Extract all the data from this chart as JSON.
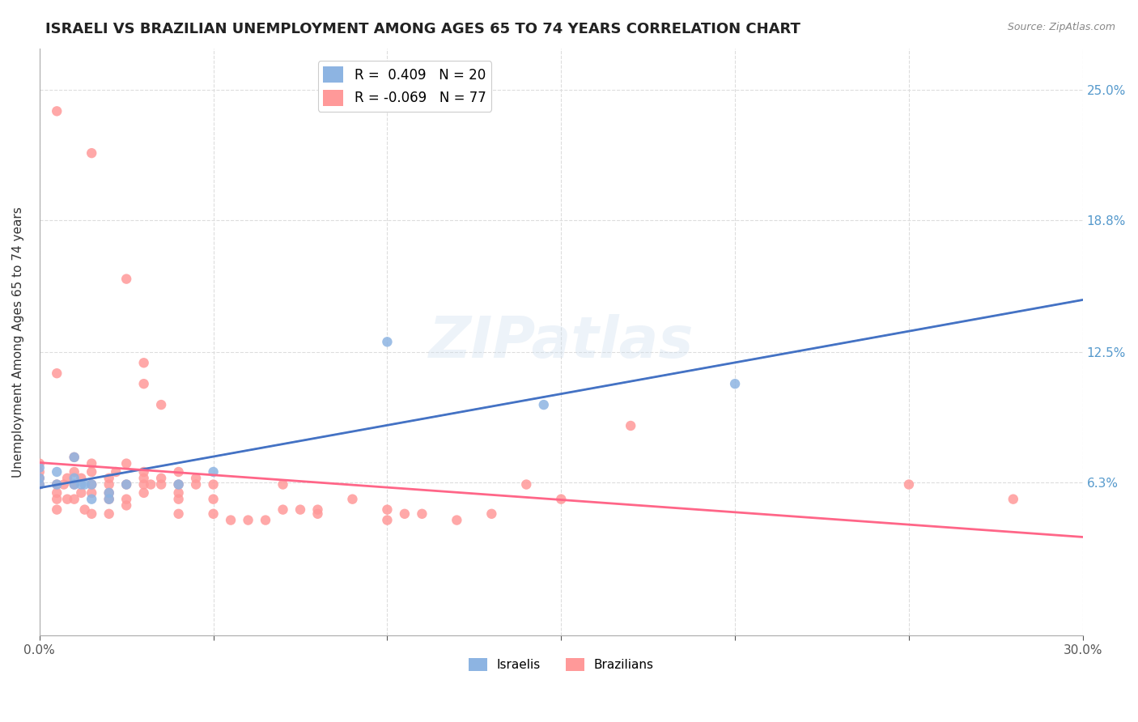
{
  "title": "ISRAELI VS BRAZILIAN UNEMPLOYMENT AMONG AGES 65 TO 74 YEARS CORRELATION CHART",
  "source": "Source: ZipAtlas.com",
  "ylabel": "Unemployment Among Ages 65 to 74 years",
  "xlim": [
    0.0,
    0.3
  ],
  "ylim": [
    -0.01,
    0.27
  ],
  "ytick_positions": [
    0.063,
    0.125,
    0.188,
    0.25
  ],
  "ytick_labels": [
    "6.3%",
    "12.5%",
    "18.8%",
    "25.0%"
  ],
  "legend_R_israeli": "0.409",
  "legend_N_israeli": "20",
  "legend_R_brazilian": "-0.069",
  "legend_N_brazilian": "77",
  "israeli_color": "#8DB4E2",
  "brazilian_color": "#FF9999",
  "trend_israeli_color": "#4472C4",
  "trend_brazilian_color": "#FF6688",
  "trend_dash_color": "#AACCEE",
  "watermark": "ZIPatlas",
  "background_color": "#FFFFFF",
  "israeli_points": [
    [
      0.0,
      0.062
    ],
    [
      0.0,
      0.065
    ],
    [
      0.0,
      0.07
    ],
    [
      0.005,
      0.062
    ],
    [
      0.005,
      0.068
    ],
    [
      0.01,
      0.062
    ],
    [
      0.01,
      0.065
    ],
    [
      0.01,
      0.075
    ],
    [
      0.012,
      0.062
    ],
    [
      0.013,
      0.062
    ],
    [
      0.015,
      0.062
    ],
    [
      0.015,
      0.055
    ],
    [
      0.02,
      0.055
    ],
    [
      0.02,
      0.058
    ],
    [
      0.025,
      0.062
    ],
    [
      0.04,
      0.062
    ],
    [
      0.05,
      0.068
    ],
    [
      0.1,
      0.13
    ],
    [
      0.145,
      0.1
    ],
    [
      0.2,
      0.11
    ]
  ],
  "brazilian_points": [
    [
      0.0,
      0.062
    ],
    [
      0.0,
      0.065
    ],
    [
      0.0,
      0.068
    ],
    [
      0.0,
      0.072
    ],
    [
      0.005,
      0.062
    ],
    [
      0.005,
      0.055
    ],
    [
      0.005,
      0.058
    ],
    [
      0.005,
      0.05
    ],
    [
      0.007,
      0.062
    ],
    [
      0.008,
      0.065
    ],
    [
      0.008,
      0.055
    ],
    [
      0.01,
      0.062
    ],
    [
      0.01,
      0.068
    ],
    [
      0.01,
      0.075
    ],
    [
      0.01,
      0.055
    ],
    [
      0.012,
      0.058
    ],
    [
      0.012,
      0.065
    ],
    [
      0.013,
      0.05
    ],
    [
      0.015,
      0.062
    ],
    [
      0.015,
      0.068
    ],
    [
      0.015,
      0.072
    ],
    [
      0.015,
      0.058
    ],
    [
      0.015,
      0.048
    ],
    [
      0.02,
      0.065
    ],
    [
      0.02,
      0.062
    ],
    [
      0.02,
      0.058
    ],
    [
      0.02,
      0.055
    ],
    [
      0.02,
      0.048
    ],
    [
      0.022,
      0.068
    ],
    [
      0.025,
      0.062
    ],
    [
      0.025,
      0.055
    ],
    [
      0.025,
      0.052
    ],
    [
      0.025,
      0.072
    ],
    [
      0.03,
      0.065
    ],
    [
      0.03,
      0.068
    ],
    [
      0.03,
      0.062
    ],
    [
      0.03,
      0.058
    ],
    [
      0.03,
      0.11
    ],
    [
      0.03,
      0.12
    ],
    [
      0.032,
      0.062
    ],
    [
      0.035,
      0.065
    ],
    [
      0.035,
      0.062
    ],
    [
      0.035,
      0.1
    ],
    [
      0.04,
      0.068
    ],
    [
      0.04,
      0.062
    ],
    [
      0.04,
      0.058
    ],
    [
      0.04,
      0.055
    ],
    [
      0.04,
      0.048
    ],
    [
      0.045,
      0.062
    ],
    [
      0.045,
      0.065
    ],
    [
      0.05,
      0.062
    ],
    [
      0.05,
      0.055
    ],
    [
      0.05,
      0.048
    ],
    [
      0.055,
      0.045
    ],
    [
      0.06,
      0.045
    ],
    [
      0.065,
      0.045
    ],
    [
      0.07,
      0.062
    ],
    [
      0.07,
      0.05
    ],
    [
      0.075,
      0.05
    ],
    [
      0.08,
      0.048
    ],
    [
      0.08,
      0.05
    ],
    [
      0.09,
      0.055
    ],
    [
      0.1,
      0.05
    ],
    [
      0.1,
      0.045
    ],
    [
      0.105,
      0.048
    ],
    [
      0.11,
      0.048
    ],
    [
      0.12,
      0.045
    ],
    [
      0.13,
      0.048
    ],
    [
      0.14,
      0.062
    ],
    [
      0.15,
      0.055
    ],
    [
      0.005,
      0.24
    ],
    [
      0.015,
      0.22
    ],
    [
      0.025,
      0.16
    ],
    [
      0.17,
      0.09
    ],
    [
      0.25,
      0.062
    ],
    [
      0.28,
      0.055
    ],
    [
      0.005,
      0.115
    ]
  ]
}
